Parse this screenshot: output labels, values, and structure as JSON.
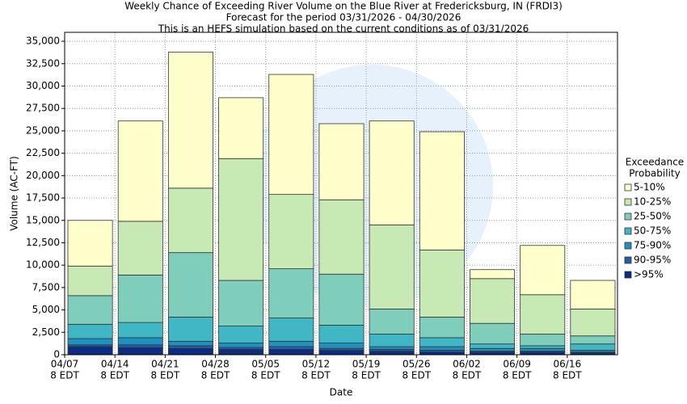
{
  "chart_data": {
    "type": "stacked_bar",
    "title": [
      "Weekly Chance of Exceeding River Volume on the Blue River at Fredericksburg, IN (FRDI3)",
      "Forecast for the period 03/31/2026 - 04/30/2026",
      "This is an HEFS simulation based on the current conditions as of 03/31/2026"
    ],
    "x_label": "Date",
    "y_label": "Volume (AC-FT)",
    "legend_title": [
      "Exceedance",
      "Probability"
    ],
    "legend_position": "right",
    "grid": true,
    "categories": [
      [
        "04/07",
        "8 EDT"
      ],
      [
        "04/14",
        "8 EDT"
      ],
      [
        "04/21",
        "8 EDT"
      ],
      [
        "04/28",
        "8 EDT"
      ],
      [
        "05/05",
        "8 EDT"
      ],
      [
        "05/12",
        "8 EDT"
      ],
      [
        "05/19",
        "8 EDT"
      ],
      [
        "05/26",
        "8 EDT"
      ],
      [
        "06/02",
        "8 EDT"
      ],
      [
        "06/09",
        "8 EDT"
      ],
      [
        "06/16",
        "8 EDT"
      ]
    ],
    "series": [
      {
        "name": ">95%",
        "color": "#0c2c84",
        "values": [
          900,
          800,
          700,
          600,
          600,
          500,
          400,
          300,
          300,
          300,
          200
        ]
      },
      {
        "name": "90-95%",
        "color": "#225ea8",
        "values": [
          200,
          300,
          300,
          200,
          300,
          200,
          200,
          200,
          100,
          100,
          100
        ]
      },
      {
        "name": "75-90%",
        "color": "#1d91c0",
        "values": [
          700,
          800,
          500,
          500,
          600,
          600,
          300,
          400,
          300,
          300,
          200
        ]
      },
      {
        "name": "50-75%",
        "color": "#41b6c4",
        "values": [
          1600,
          1700,
          2700,
          1900,
          2600,
          2000,
          1400,
          1000,
          500,
          300,
          700
        ]
      },
      {
        "name": "25-50%",
        "color": "#7fcdbb",
        "values": [
          3200,
          5300,
          7200,
          5100,
          5500,
          5700,
          2800,
          2300,
          2300,
          1300,
          900
        ]
      },
      {
        "name": "10-25%",
        "color": "#c7e9b4",
        "values": [
          3300,
          6000,
          7200,
          13600,
          8300,
          8300,
          9400,
          7500,
          5000,
          4400,
          3000
        ]
      },
      {
        "name": "5-10%",
        "color": "#ffffcc",
        "values": [
          5100,
          11200,
          15200,
          6800,
          13400,
          8500,
          11600,
          13200,
          1000,
          5500,
          3200
        ]
      }
    ],
    "ylim": [
      0,
      36000
    ],
    "yticks": [
      0,
      {
        "value": 2500,
        "label": "2,500"
      },
      {
        "value": 5000,
        "label": "5,000"
      },
      {
        "value": 7500,
        "label": "7,500"
      },
      {
        "value": 10000,
        "label": "10,000"
      },
      {
        "value": 12500,
        "label": "12,500"
      },
      {
        "value": 15000,
        "label": "15,000"
      },
      {
        "value": 17500,
        "label": "17,500"
      },
      {
        "value": 20000,
        "label": "20,000"
      },
      {
        "value": 22500,
        "label": "22,500"
      },
      {
        "value": 25000,
        "label": "25,000"
      },
      {
        "value": 27500,
        "label": "27,500"
      },
      {
        "value": 30000,
        "label": "30,000"
      },
      {
        "value": 32500,
        "label": "32,500"
      },
      {
        "value": 35000,
        "label": "35,000"
      }
    ]
  }
}
